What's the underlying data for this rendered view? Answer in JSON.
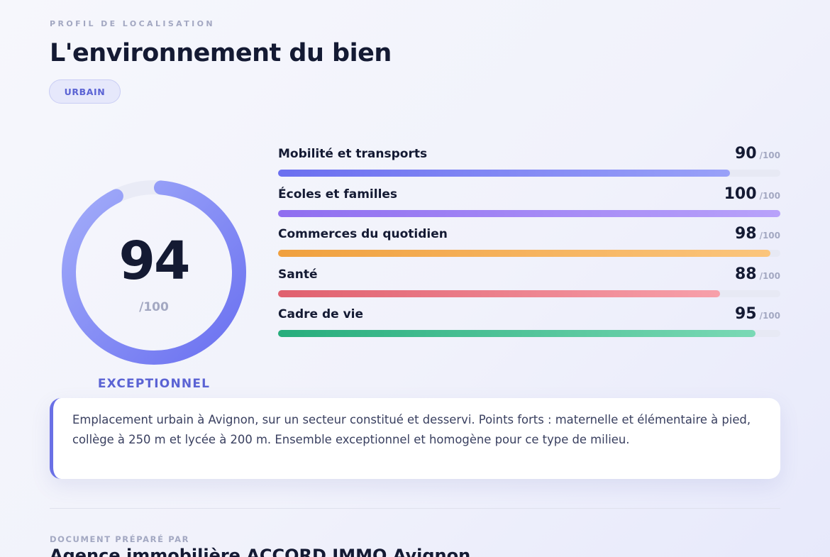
{
  "header": {
    "eyebrow": "PROFIL DE LOCALISATION",
    "title": "L'environnement du bien",
    "badge": "URBAIN"
  },
  "overall": {
    "score": 94,
    "score_text": "94",
    "max_text": "/100",
    "rating": "EXCEPTIONNEL",
    "ring_colors": [
      "#6a70f0",
      "#a3adfa"
    ]
  },
  "categories": [
    {
      "label": "Mobilité et transports",
      "value": 90,
      "value_text": "90",
      "max_text": "/100",
      "colors": [
        "#6b6ff0",
        "#99a1f8"
      ]
    },
    {
      "label": "Écoles et familles",
      "value": 100,
      "value_text": "100",
      "max_text": "/100",
      "colors": [
        "#8f6ef0",
        "#b8a2fa"
      ]
    },
    {
      "label": "Commerces du quotidien",
      "value": 98,
      "value_text": "98",
      "max_text": "/100",
      "colors": [
        "#f0a03e",
        "#fbc57c"
      ]
    },
    {
      "label": "Santé",
      "value": 88,
      "value_text": "88",
      "max_text": "/100",
      "colors": [
        "#e0606e",
        "#f7a0aa"
      ]
    },
    {
      "label": "Cadre de vie",
      "value": 95,
      "value_text": "95",
      "max_text": "/100",
      "colors": [
        "#27ad7c",
        "#7ad9b5"
      ]
    }
  ],
  "summary": {
    "text": "Emplacement urbain à Avignon, sur un secteur constitué et desservi. Points forts : maternelle et élémentaire à pied, collège à 250 m et lycée à 200 m. Ensemble exceptionnel et homogène pour ce type de milieu."
  },
  "footer": {
    "prepared_by_label": "DOCUMENT PRÉPARÉ PAR",
    "agency_name": "Agence immobilière ACCORD IMMO Avignon"
  },
  "colors": {
    "accent": "#6a70e6",
    "text_dark": "#141a33",
    "muted": "#a3a8c2"
  }
}
